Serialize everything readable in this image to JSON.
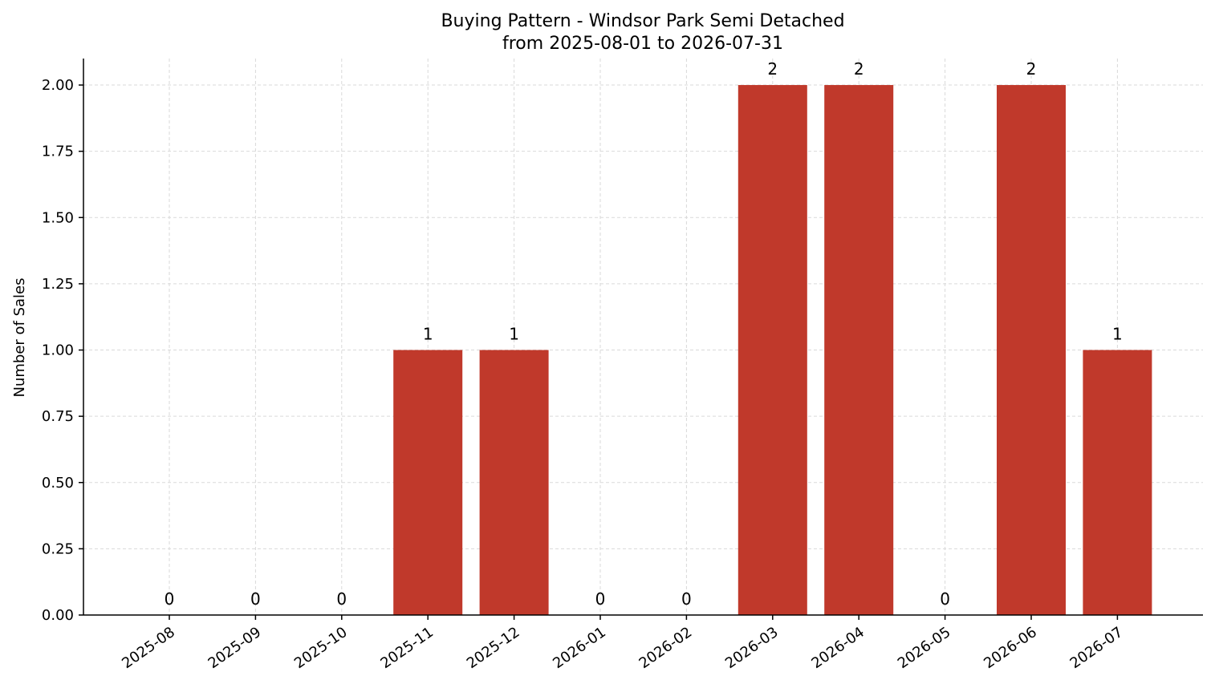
{
  "chart_data": {
    "type": "bar",
    "title_line1": "Buying Pattern - Windsor Park Semi Detached",
    "title_line2": "from 2025-08-01 to 2026-07-31",
    "xlabel": "",
    "ylabel": "Number of Sales",
    "categories": [
      "2025-08",
      "2025-09",
      "2025-10",
      "2025-11",
      "2025-12",
      "2026-01",
      "2026-02",
      "2026-03",
      "2026-04",
      "2026-05",
      "2026-06",
      "2026-07"
    ],
    "values": [
      0,
      0,
      0,
      1,
      1,
      0,
      0,
      2,
      2,
      0,
      2,
      1
    ],
    "data_labels": [
      "0",
      "0",
      "0",
      "1",
      "1",
      "0",
      "0",
      "2",
      "2",
      "0",
      "2",
      "1"
    ],
    "ylim": [
      0,
      2.1
    ],
    "y_ticks": [
      0,
      0.25,
      0.5,
      0.75,
      1.0,
      1.25,
      1.5,
      1.75,
      2.0
    ],
    "y_tick_labels": [
      "0.00",
      "0.25",
      "0.50",
      "0.75",
      "1.00",
      "1.25",
      "1.50",
      "1.75",
      "2.00"
    ],
    "bar_color": "#c0392b",
    "grid": true,
    "legend": "none"
  }
}
